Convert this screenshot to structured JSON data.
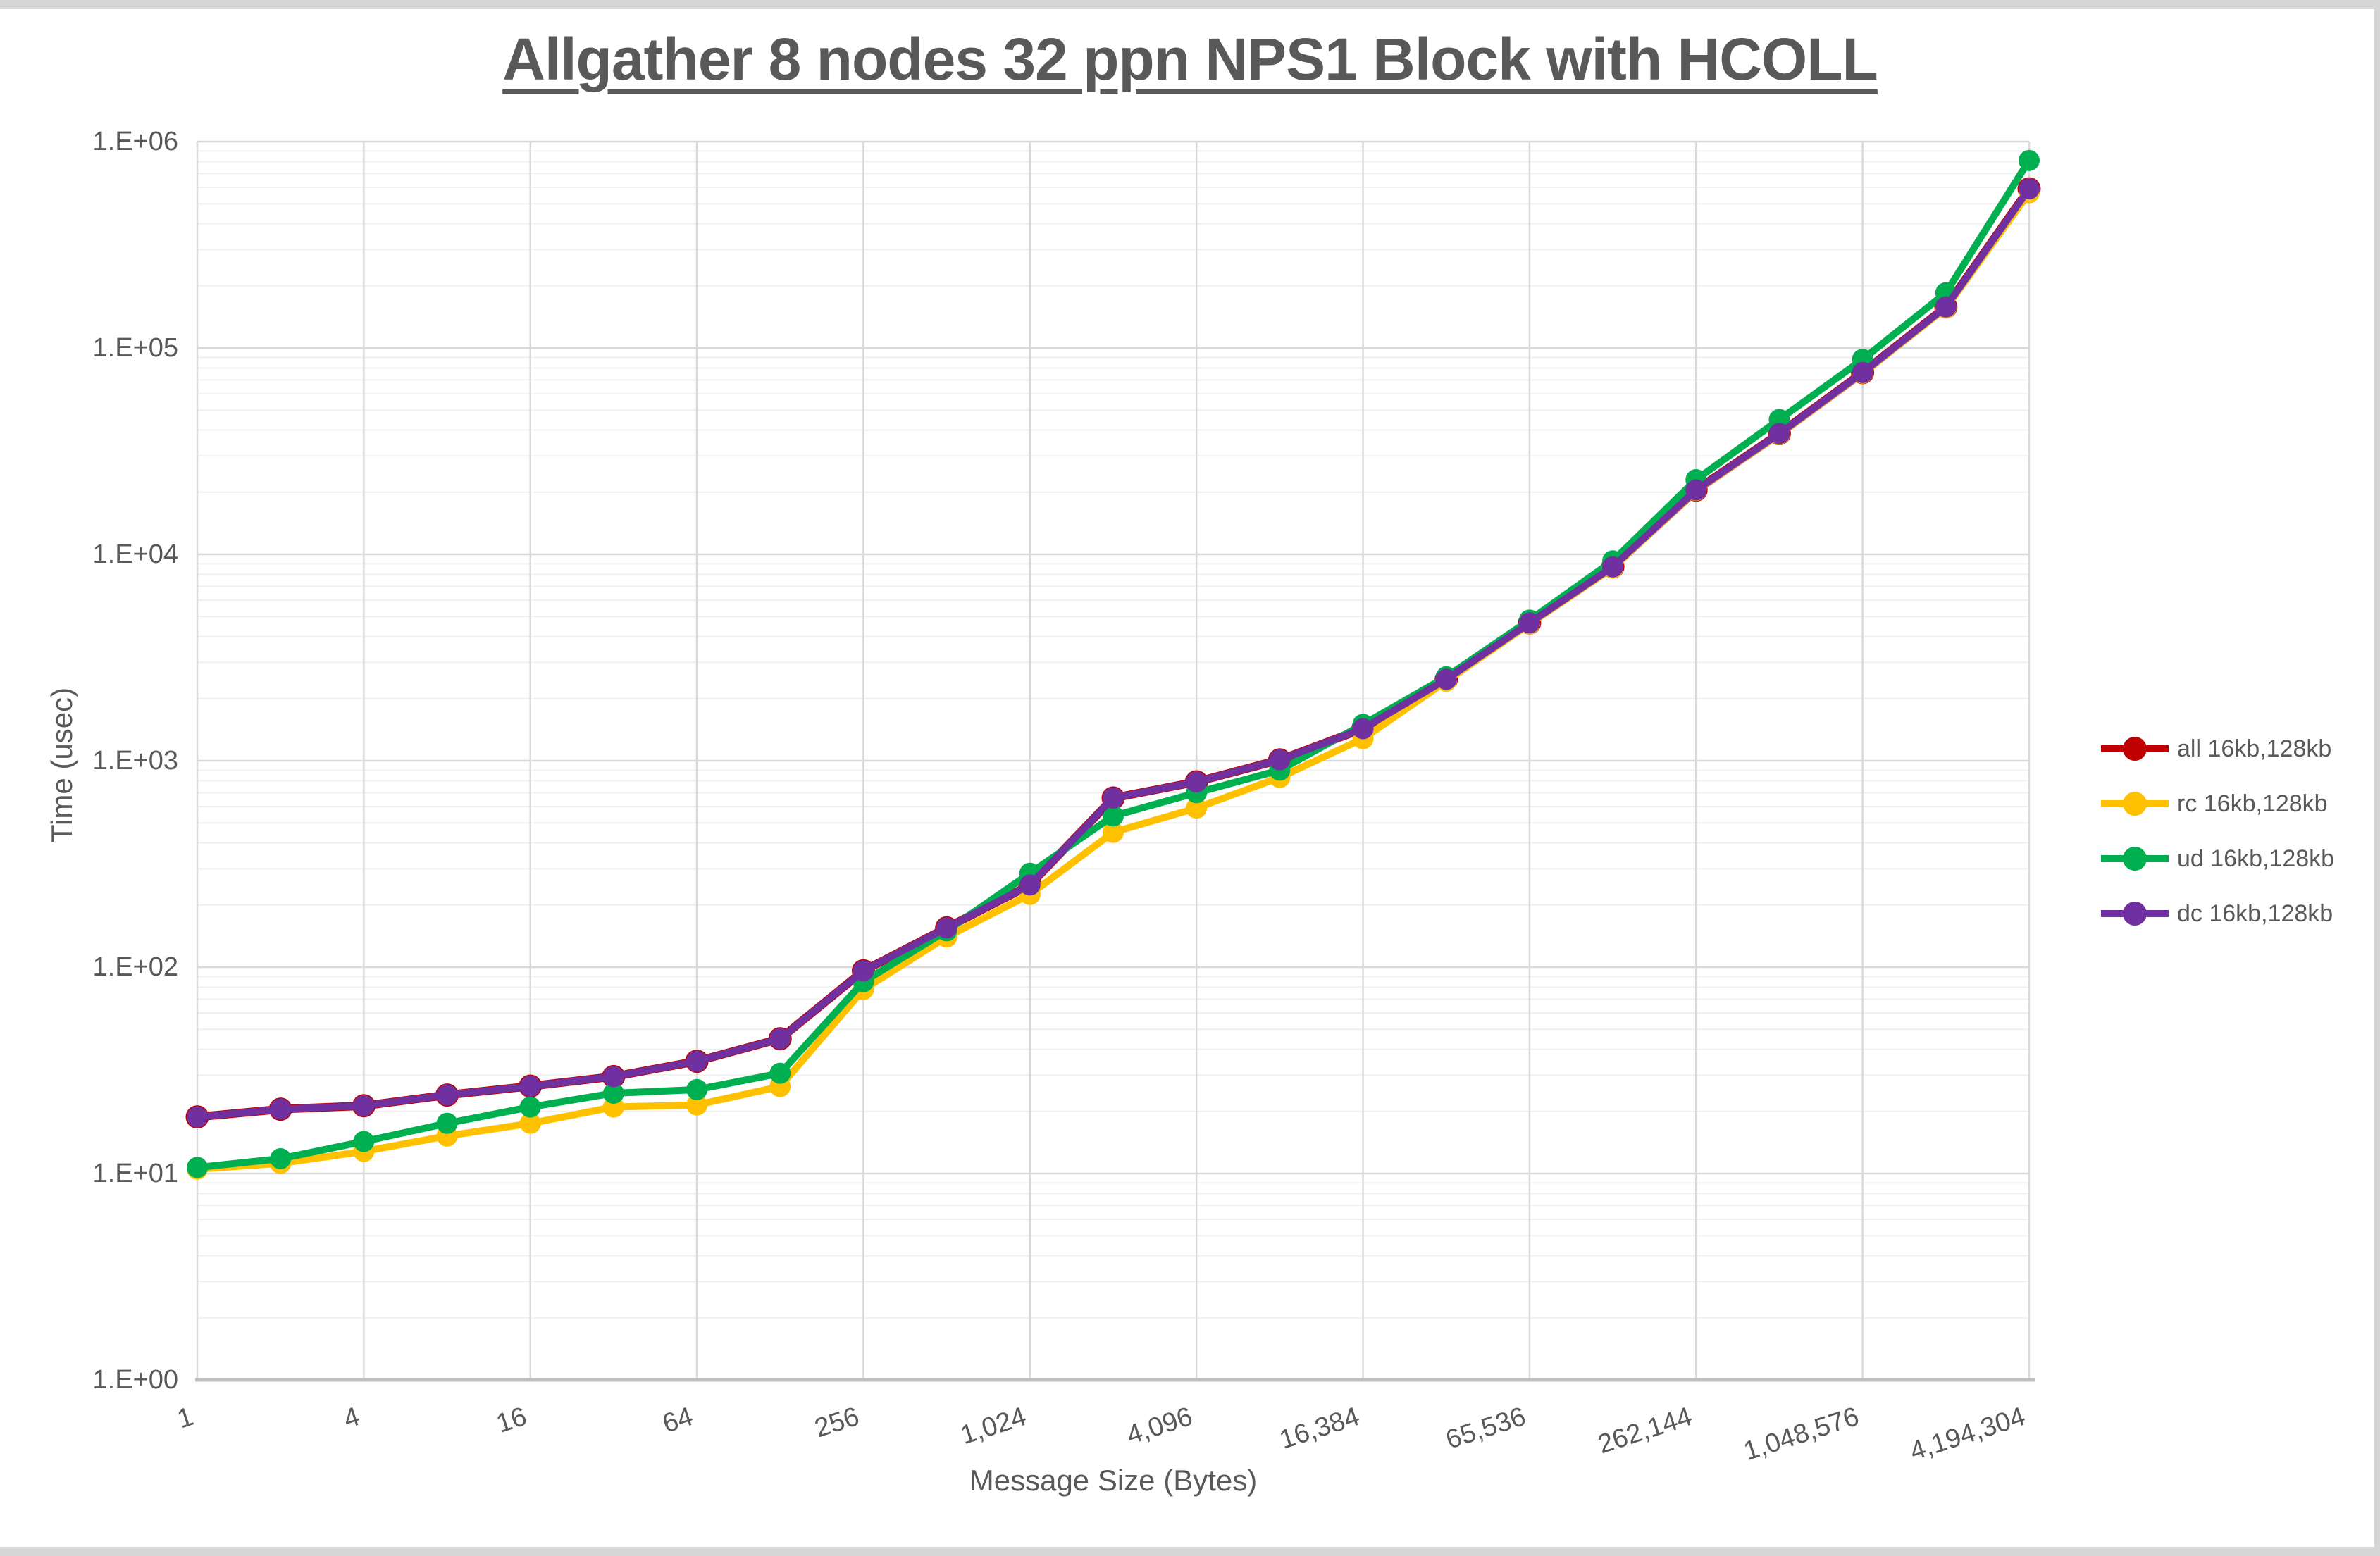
{
  "title": {
    "text": "Allgather 8 nodes 32 ppn NPS1 Block with HCOLL",
    "color": "#595959"
  },
  "axes": {
    "x": {
      "title": "Message Size (Bytes)",
      "tick_labels": [
        "1",
        "4",
        "16",
        "64",
        "256",
        "1,024",
        "4,096",
        "16,384",
        "65,536",
        "262,144",
        "1,048,576",
        "4,194,304"
      ]
    },
    "y": {
      "title": "Time (usec)",
      "tick_labels": [
        "1.E+00",
        "1.E+01",
        "1.E+02",
        "1.E+03",
        "1.E+04",
        "1.E+05",
        "1.E+06"
      ]
    }
  },
  "legend": [
    {
      "label": "all 16kb,128kb",
      "color": "#C00000"
    },
    {
      "label": "rc 16kb,128kb",
      "color": "#FFC000"
    },
    {
      "label": "ud 16kb,128kb",
      "color": "#00B050"
    },
    {
      "label": "dc 16kb,128kb",
      "color": "#7030A0"
    }
  ],
  "chart_data": {
    "type": "line",
    "title": "Allgather 8 nodes 32 ppn NPS1 Block with HCOLL",
    "xlabel": "Message Size (Bytes)",
    "ylabel": "Time (usec)",
    "x_scale": "log2",
    "y_scale": "log10",
    "xlim": [
      1,
      4194304
    ],
    "ylim": [
      1,
      1000000
    ],
    "grid": true,
    "legend_position": "right",
    "x": [
      1,
      2,
      4,
      8,
      16,
      32,
      64,
      128,
      256,
      512,
      1024,
      2048,
      4096,
      8192,
      16384,
      32768,
      65536,
      131072,
      262144,
      524288,
      1048576,
      2097152,
      4194304
    ],
    "series": [
      {
        "name": "all 16kb,128kb",
        "color": "#C00000",
        "values": [
          18.8,
          20.5,
          21.3,
          24,
          26.5,
          29.5,
          35,
          45,
          96,
          155,
          250,
          660,
          790,
          1010,
          1430,
          2480,
          4650,
          8700,
          20500,
          38500,
          76000,
          158000,
          590000
        ]
      },
      {
        "name": "rc 16kb,128kb",
        "color": "#FFC000",
        "values": [
          10.5,
          11.2,
          12.8,
          15.2,
          17.5,
          21,
          21.5,
          26.4,
          78,
          140,
          225,
          450,
          590,
          830,
          1280,
          2430,
          4600,
          8600,
          20400,
          38200,
          75500,
          156000,
          565000
        ]
      },
      {
        "name": "ud 16kb,128kb",
        "color": "#00B050",
        "values": [
          10.7,
          11.8,
          14.3,
          17.5,
          21,
          24.5,
          25.5,
          30.6,
          85,
          150,
          285,
          540,
          700,
          900,
          1500,
          2550,
          4800,
          9300,
          23000,
          45000,
          88000,
          185000,
          810000
        ]
      },
      {
        "name": "dc 16kb,128kb",
        "color": "#7030A0",
        "values": [
          18.8,
          20.5,
          21.3,
          24,
          26.5,
          29.5,
          35,
          45,
          96,
          155,
          250,
          660,
          790,
          1010,
          1430,
          2480,
          4650,
          8700,
          20500,
          38500,
          76000,
          158000,
          590000
        ]
      }
    ]
  },
  "style": {
    "major_grid_color": "#D9D9D9",
    "minor_grid_color": "#F0F0F0",
    "axis_line_color": "#BFBFBF",
    "text_color": "#595959",
    "background": "#FFFFFF"
  }
}
